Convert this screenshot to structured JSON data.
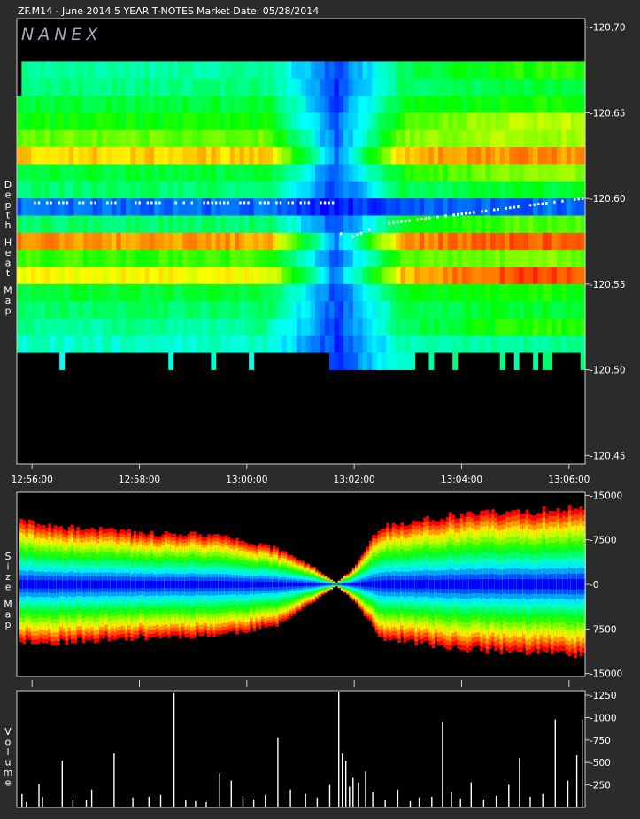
{
  "header": {
    "symbol_title": "ZF.M14 - June 2014 5 YEAR T-NOTES",
    "market_date": "Market Date: 05/28/2014"
  },
  "logo": "NANEX",
  "colors": {
    "background": "#2b2b2b",
    "plot_background": "#000000",
    "frame": "#d0d0d0",
    "text": "#ffffff",
    "volume_bar": "#ffffff"
  },
  "chart_data": [
    {
      "type": "heatmap",
      "title": "Depth Heat Map",
      "ylabel": "Depth Heat Map",
      "x_tick_labels": [
        "12:56:00",
        "12:58:00",
        "13:00:00",
        "13:02:00",
        "13:04:00",
        "13:06:00"
      ],
      "y_tick_labels": [
        "120.70",
        "120.65",
        "120.60",
        "120.55",
        "120.50",
        "120.45"
      ],
      "xlim": [
        "12:55:43",
        "13:06:18"
      ],
      "ylim": [
        120.445,
        120.705
      ],
      "price_levels": [
        120.675,
        120.665,
        120.655,
        120.645,
        120.635,
        120.625,
        120.615,
        120.605,
        120.595,
        120.585,
        120.575,
        120.565,
        120.555,
        120.545,
        120.535,
        120.525,
        120.515,
        120.505
      ],
      "level_heat": [
        0.35,
        0.38,
        0.45,
        0.5,
        0.6,
        0.8,
        0.45,
        0.4,
        0.1,
        0.4,
        0.85,
        0.55,
        0.75,
        0.45,
        0.4,
        0.35,
        0.3,
        0.3
      ],
      "color_scale": [
        "#0000ff",
        "#00ffff",
        "#00ff00",
        "#ffff00",
        "#ff0000"
      ],
      "market_price_path": [
        {
          "t": "12:56:00",
          "price": 120.5975
        },
        {
          "t": "13:01:40",
          "price": 120.5975
        },
        {
          "t": "13:01:45",
          "price": 120.575
        },
        {
          "t": "13:02:30",
          "price": 120.585
        },
        {
          "t": "13:06:15",
          "price": 120.6
        }
      ],
      "grid": false
    },
    {
      "type": "area",
      "title": "Size Map",
      "ylabel": "Size Map",
      "x_tick_labels": [
        "12:56:00",
        "12:58:00",
        "13:00:00",
        "13:02:00",
        "13:04:00",
        "13:06:00"
      ],
      "y_tick_labels": [
        "15000",
        "7500",
        "0",
        "-7500",
        "-15000"
      ],
      "ylim": [
        -15500,
        15500
      ],
      "envelope": {
        "t": [
          "12:55:45",
          "12:56:10",
          "12:58:00",
          "12:59:30",
          "13:00:30",
          "13:01:10",
          "13:01:40",
          "13:02:00",
          "13:02:30",
          "13:04:00",
          "13:06:15"
        ],
        "upper": [
          11500,
          10500,
          9200,
          8800,
          6500,
          3500,
          300,
          3000,
          10500,
          12500,
          13500
        ],
        "lower": [
          -10000,
          -10500,
          -9500,
          -9000,
          -7500,
          -3500,
          -300,
          -3000,
          -9500,
          -11500,
          -12500
        ]
      },
      "color_scale": [
        "#0000ff",
        "#00ffff",
        "#00ff00",
        "#ffff00",
        "#ff0000"
      ]
    },
    {
      "type": "bar",
      "title": "Volume",
      "ylabel": "Volume",
      "y_tick_labels": [
        "1250",
        "1000",
        "750",
        "500",
        "250"
      ],
      "ylim": [
        0,
        1300
      ],
      "x": [
        "12:55:48",
        "12:55:53",
        "12:56:07",
        "12:56:11",
        "12:56:33",
        "12:56:45",
        "12:57:00",
        "12:57:06",
        "12:57:31",
        "12:57:52",
        "12:58:10",
        "12:58:23",
        "12:58:38",
        "12:58:51",
        "12:59:02",
        "12:59:14",
        "12:59:29",
        "12:59:42",
        "12:59:55",
        "13:00:07",
        "13:00:20",
        "13:00:34",
        "13:00:48",
        "13:01:05",
        "13:01:18",
        "13:01:32",
        "13:01:42",
        "13:01:46",
        "13:01:50",
        "13:01:54",
        "13:01:58",
        "13:02:04",
        "13:02:12",
        "13:02:20",
        "13:02:34",
        "13:02:48",
        "13:03:02",
        "13:03:12",
        "13:03:26",
        "13:03:38",
        "13:03:48",
        "13:03:58",
        "13:04:10",
        "13:04:24",
        "13:04:38",
        "13:04:52",
        "13:05:04",
        "13:05:16",
        "13:05:30",
        "13:05:44",
        "13:05:58",
        "13:06:08",
        "13:06:14"
      ],
      "values": [
        150,
        60,
        260,
        120,
        520,
        90,
        80,
        200,
        600,
        110,
        120,
        140,
        1270,
        80,
        70,
        60,
        380,
        300,
        130,
        90,
        140,
        780,
        200,
        150,
        110,
        250,
        1290,
        600,
        520,
        230,
        330,
        280,
        400,
        170,
        80,
        200,
        70,
        110,
        120,
        950,
        170,
        100,
        280,
        90,
        130,
        250,
        550,
        120,
        150,
        980,
        300,
        580,
        980
      ]
    }
  ]
}
